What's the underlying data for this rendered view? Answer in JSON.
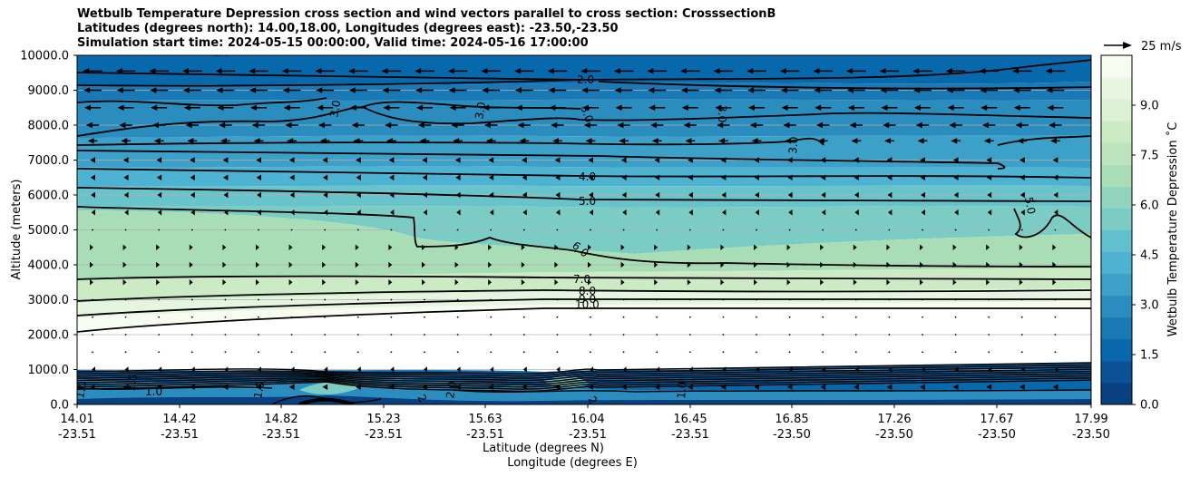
{
  "titles": [
    "Wetbulb Temperature Depression cross section and wind vectors parallel to cross section: CrosssectionB",
    "Latitudes (degrees north): 14.00,18.00, Longitudes (degrees east): -23.50,-23.50",
    "Simulation start time: 2024-05-15 00:00:00, Valid time: 2024-05-16 17:00:00"
  ],
  "chart_data": {
    "type": "contour-cross-section",
    "variable": "Wetbulb Temperature Depression",
    "ylabel": "Altitude (meters)",
    "xlabel_lat": "Latitude (degrees N)",
    "xlabel_lon": "Longitude (degrees E)",
    "ylim": [
      0,
      10000
    ],
    "yticks": [
      "0.0",
      "1000.0",
      "2000.0",
      "3000.0",
      "4000.0",
      "5000.0",
      "6000.0",
      "7000.0",
      "8000.0",
      "9000.0",
      "10000.0"
    ],
    "ytick_values": [
      0,
      1000,
      2000,
      3000,
      4000,
      5000,
      6000,
      7000,
      8000,
      9000,
      10000
    ],
    "xticks": [
      {
        "lat": "14.01",
        "lon": "-23.51"
      },
      {
        "lat": "14.42",
        "lon": "-23.51"
      },
      {
        "lat": "14.82",
        "lon": "-23.51"
      },
      {
        "lat": "15.23",
        "lon": "-23.51"
      },
      {
        "lat": "15.63",
        "lon": "-23.51"
      },
      {
        "lat": "16.04",
        "lon": "-23.51"
      },
      {
        "lat": "16.45",
        "lon": "-23.51"
      },
      {
        "lat": "16.85",
        "lon": "-23.50"
      },
      {
        "lat": "17.26",
        "lon": "-23.50"
      },
      {
        "lat": "17.67",
        "lon": "-23.50"
      },
      {
        "lat": "17.99",
        "lon": "-23.50"
      }
    ],
    "xlim": [
      14.01,
      17.99
    ],
    "colorbar": {
      "label": "Wetbulb Temperature Depression ˚C",
      "range": [
        0,
        10.5
      ],
      "ticks": [
        "0.0",
        "1.5",
        "3.0",
        "4.5",
        "6.0",
        "7.5",
        "9.0"
      ],
      "tick_values": [
        0,
        1.5,
        3.0,
        4.5,
        6.0,
        7.5,
        9.0
      ],
      "colormap": "GnBu_r"
    },
    "contour_levels": [
      {
        "label": "2.0",
        "altitude": 9650
      },
      {
        "label": "3.0",
        "altitude": 8100
      },
      {
        "label": "4.0",
        "altitude": 6300
      },
      {
        "label": "5.0",
        "altitude": 5950
      },
      {
        "label": "6.0",
        "altitude": 4300
      },
      {
        "label": "7.0",
        "altitude": 3600
      },
      {
        "label": "8.0",
        "altitude": 3200
      },
      {
        "label": "9.0",
        "altitude": 3000
      },
      {
        "label": "10.0",
        "altitude": 2650
      },
      {
        "label": "1.0",
        "altitude": 400
      }
    ],
    "inline_labels": [
      "2.0",
      "3.0",
      "3.0",
      "3.0",
      "3.0",
      "3.0",
      "4.0",
      "5.0",
      "5.0",
      "6.0",
      "7.0",
      "8.0",
      "9.0",
      "10.0",
      "1.0",
      "1.0",
      "1.0",
      "1.0",
      "1.0",
      "1.0",
      "2.0",
      "2.0",
      "2.0"
    ],
    "wind_reference": {
      "label": "25 m/s",
      "speed_ms": 25
    },
    "wind_rows": [
      {
        "altitude": 9550,
        "speed": -12
      },
      {
        "altitude": 9000,
        "speed": -11
      },
      {
        "altitude": 8500,
        "speed": -10
      },
      {
        "altitude": 8000,
        "speed": -8
      },
      {
        "altitude": 7550,
        "speed": -6
      },
      {
        "altitude": 7000,
        "speed": -3
      },
      {
        "altitude": 6500,
        "speed": -2.5
      },
      {
        "altitude": 6000,
        "speed": -2
      },
      {
        "altitude": 5500,
        "speed": -1.5
      },
      {
        "altitude": 5000,
        "speed": 0.5
      },
      {
        "altitude": 4500,
        "speed": 1
      },
      {
        "altitude": 4000,
        "speed": 1
      },
      {
        "altitude": 3500,
        "speed": 1
      },
      {
        "altitude": 3000,
        "speed": 0.5
      },
      {
        "altitude": 2500,
        "speed": 0
      },
      {
        "altitude": 2000,
        "speed": 0
      },
      {
        "altitude": 1500,
        "speed": 0
      },
      {
        "altitude": 1000,
        "speed": -1
      },
      {
        "altitude": 500,
        "speed": -3
      }
    ]
  }
}
